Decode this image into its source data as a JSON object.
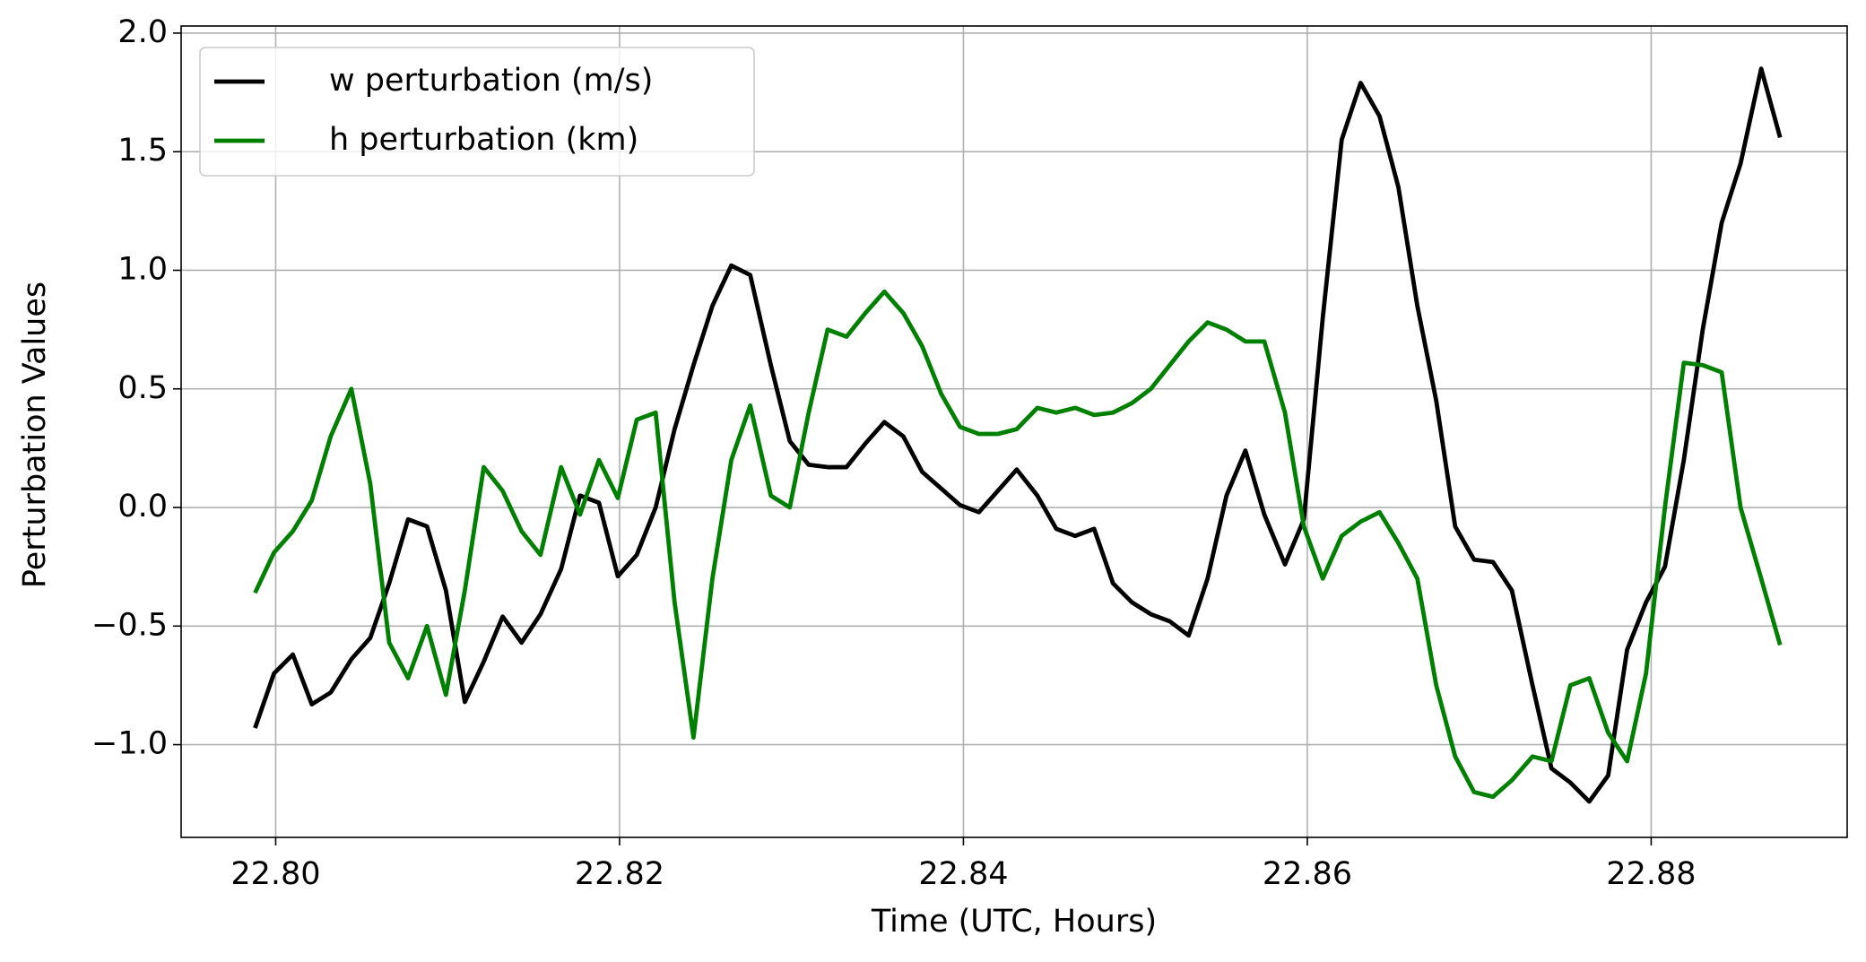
{
  "chart_data": {
    "type": "line",
    "xlabel": "Time (UTC, Hours)",
    "ylabel": "Perturbation Values",
    "x": [
      22.7988,
      22.7999,
      22.801,
      22.8021,
      22.8032,
      22.8044,
      22.8055,
      22.8066,
      22.8077,
      22.8088,
      22.8099,
      22.811,
      22.8121,
      22.8132,
      22.8143,
      22.8154,
      22.8166,
      22.8177,
      22.8188,
      22.8199,
      22.821,
      22.8221,
      22.8232,
      22.8243,
      22.8254,
      22.8265,
      22.8276,
      22.8288,
      22.8299,
      22.831,
      22.8321,
      22.8332,
      22.8343,
      22.8354,
      22.8365,
      22.8376,
      22.8387,
      22.8398,
      22.8409,
      22.842,
      22.8431,
      22.8443,
      22.8454,
      22.8465,
      22.8476,
      22.8487,
      22.8498,
      22.8509,
      22.852,
      22.8531,
      22.8542,
      22.8553,
      22.8564,
      22.8575,
      22.8587,
      22.8598,
      22.8609,
      22.862,
      22.8631,
      22.8642,
      22.8653,
      22.8664,
      22.8675,
      22.8686,
      22.8697,
      22.8708,
      22.8719,
      22.8731,
      22.8742,
      22.8753,
      22.8764,
      22.8775,
      22.8786,
      22.8797,
      22.8808,
      22.8819,
      22.883,
      22.8841,
      22.8852,
      22.8864,
      22.8875
    ],
    "series": [
      {
        "name": "w perturbation (m/s)",
        "color": "#000000",
        "values": [
          -0.93,
          -0.7,
          -0.62,
          -0.83,
          -0.78,
          -0.64,
          -0.55,
          -0.32,
          -0.05,
          -0.08,
          -0.35,
          -0.82,
          -0.65,
          -0.46,
          -0.57,
          -0.45,
          -0.26,
          0.05,
          0.02,
          -0.29,
          -0.2,
          0.0,
          0.33,
          0.6,
          0.85,
          1.02,
          0.98,
          0.6,
          0.28,
          0.18,
          0.17,
          0.17,
          0.27,
          0.36,
          0.3,
          0.15,
          0.08,
          0.01,
          -0.02,
          0.07,
          0.16,
          0.05,
          -0.09,
          -0.12,
          -0.09,
          -0.32,
          -0.4,
          -0.45,
          -0.48,
          -0.54,
          -0.3,
          0.05,
          0.24,
          -0.03,
          -0.24,
          -0.05,
          0.8,
          1.55,
          1.79,
          1.65,
          1.35,
          0.85,
          0.45,
          -0.08,
          -0.22,
          -0.23,
          -0.35,
          -0.75,
          -1.1,
          -1.16,
          -1.24,
          -1.13,
          -0.6,
          -0.4,
          -0.25,
          0.2,
          0.75,
          1.2,
          1.45,
          1.85,
          1.56
        ]
      },
      {
        "name": "h perturbation (km)",
        "color": "#008000",
        "values": [
          -0.36,
          -0.19,
          -0.1,
          0.03,
          0.3,
          0.5,
          0.1,
          -0.57,
          -0.72,
          -0.5,
          -0.79,
          -0.35,
          0.17,
          0.07,
          -0.1,
          -0.2,
          0.17,
          -0.03,
          0.2,
          0.04,
          0.37,
          0.4,
          -0.4,
          -0.97,
          -0.3,
          0.2,
          0.43,
          0.05,
          0.0,
          0.4,
          0.75,
          0.72,
          0.82,
          0.91,
          0.82,
          0.68,
          0.48,
          0.34,
          0.31,
          0.31,
          0.33,
          0.42,
          0.4,
          0.42,
          0.39,
          0.4,
          0.44,
          0.5,
          0.6,
          0.7,
          0.78,
          0.75,
          0.7,
          0.7,
          0.4,
          -0.08,
          -0.3,
          -0.12,
          -0.06,
          -0.02,
          -0.15,
          -0.3,
          -0.75,
          -1.05,
          -1.2,
          -1.22,
          -1.15,
          -1.05,
          -1.07,
          -0.75,
          -0.72,
          -0.95,
          -1.07,
          -0.7,
          0.0,
          0.61,
          0.6,
          0.57,
          0.0,
          -0.3,
          -0.58
        ]
      }
    ],
    "xlim": [
      22.7945,
      22.8914
    ],
    "ylim": [
      -1.391,
      2.03
    ],
    "xticks": [
      {
        "value": 22.8,
        "label": "22.80"
      },
      22.82,
      22.84,
      22.86,
      22.88
    ],
    "yticks": [
      {
        "value": -1.0,
        "label": "−1.0"
      },
      {
        "value": -0.5,
        "label": "−0.5"
      },
      {
        "value": 0.0,
        "label": "0.0"
      },
      0.5,
      {
        "value": 1.0,
        "label": "1.0"
      },
      1.5,
      {
        "value": 2.0,
        "label": "2.0"
      }
    ],
    "grid": true,
    "legend": "upper left"
  }
}
